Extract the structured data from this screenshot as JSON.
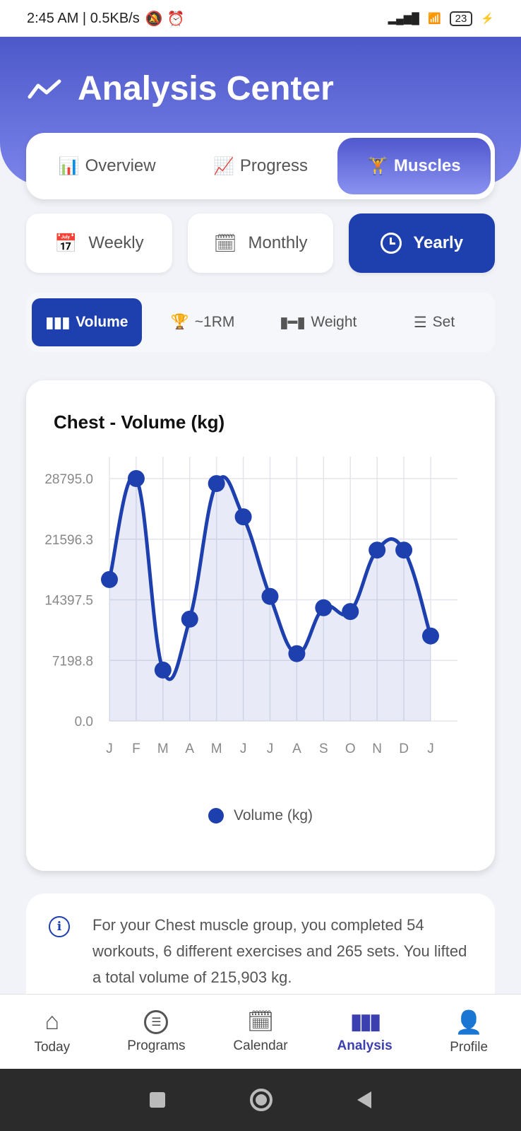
{
  "status": {
    "time": "2:45 AM | 0.5KB/s",
    "battery": "23"
  },
  "header": {
    "title": "Analysis Center"
  },
  "tabs": [
    {
      "icon": "📊",
      "label": "Overview"
    },
    {
      "icon": "📈",
      "label": "Progress"
    },
    {
      "icon": "🏋",
      "label": "Muscles"
    }
  ],
  "periods": [
    {
      "label": "Weekly"
    },
    {
      "label": "Monthly"
    },
    {
      "label": "Yearly"
    }
  ],
  "metrics": [
    {
      "label": "Volume"
    },
    {
      "label": "~1RM"
    },
    {
      "label": "Weight"
    },
    {
      "label": "Set"
    }
  ],
  "colors": {
    "accent": "#1e3fae",
    "header": "#5058cf"
  },
  "chart_data": {
    "type": "line",
    "title": "Chest - Volume (kg)",
    "categories": [
      "J",
      "F",
      "M",
      "A",
      "M",
      "J",
      "J",
      "A",
      "S",
      "O",
      "N",
      "D",
      "J"
    ],
    "series": [
      {
        "name": "Volume (kg)",
        "values": [
          16800,
          28795,
          6050,
          12100,
          28200,
          24250,
          14800,
          8000,
          13450,
          13000,
          20300,
          20300,
          10100
        ]
      }
    ],
    "yticks": [
      "28795.0",
      "21596.3",
      "14397.5",
      "7198.8",
      "0.0"
    ],
    "ylim": [
      0,
      28795
    ],
    "grid": true,
    "legend": "bottom"
  },
  "info": {
    "text": "For your Chest muscle group, you completed 54 workouts, 6 different exercises and 265 sets. You lifted a total volume of 215,903 kg."
  },
  "nav": [
    {
      "label": "Today"
    },
    {
      "label": "Programs"
    },
    {
      "label": "Calendar"
    },
    {
      "label": "Analysis"
    },
    {
      "label": "Profile"
    }
  ]
}
